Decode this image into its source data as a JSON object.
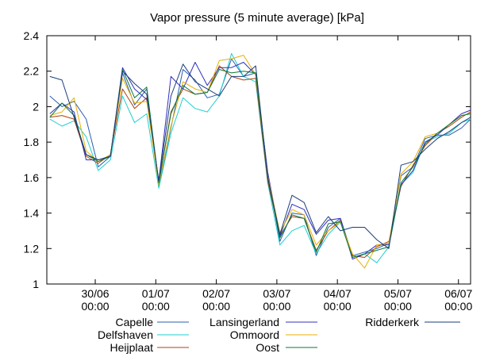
{
  "chart_data": {
    "type": "line",
    "title": "Vapor pressure (5 minute average) [kPa]",
    "xlabel": "",
    "ylabel": "",
    "ylim": [
      1,
      2.4
    ],
    "y_ticks": [
      "1",
      "1.2",
      "1.4",
      "1.6",
      "1.8",
      "2",
      "2.2",
      "2.4"
    ],
    "x_ticks": [
      {
        "day": "30/06",
        "time": "00:00"
      },
      {
        "day": "01/07",
        "time": "00:00"
      },
      {
        "day": "02/07",
        "time": "00:00"
      },
      {
        "day": "03/07",
        "time": "00:00"
      },
      {
        "day": "04/07",
        "time": "00:00"
      },
      {
        "day": "05/07",
        "time": "00:00"
      },
      {
        "day": "06/07",
        "time": "00:00"
      }
    ],
    "x_unit": "days since 29/06 00:00",
    "xlim": [
      0.2,
      7.2
    ],
    "x": [
      0.25,
      0.45,
      0.65,
      0.85,
      1.05,
      1.25,
      1.45,
      1.65,
      1.85,
      2.05,
      2.25,
      2.45,
      2.65,
      2.85,
      3.05,
      3.25,
      3.45,
      3.65,
      3.85,
      4.05,
      4.25,
      4.45,
      4.65,
      4.85,
      5.05,
      5.25,
      5.45,
      5.65,
      5.85,
      6.05,
      6.25,
      6.45,
      6.65,
      6.85,
      7.05,
      7.2
    ],
    "grid": false,
    "legend_position": "bottom",
    "series": [
      {
        "name": "Capelle",
        "color": "#2a5db0",
        "values": [
          2.06,
          2.0,
          2.03,
          1.93,
          1.66,
          1.72,
          2.19,
          2.01,
          2.1,
          1.55,
          1.88,
          2.21,
          2.15,
          2.05,
          2.07,
          2.27,
          2.17,
          2.19,
          1.62,
          1.24,
          1.4,
          1.39,
          1.16,
          1.32,
          1.37,
          1.16,
          1.18,
          1.2,
          1.23,
          1.61,
          1.66,
          1.82,
          1.84,
          1.84,
          1.88,
          1.93
        ]
      },
      {
        "name": "Delfshaven",
        "color": "#1fcfcf",
        "values": [
          1.93,
          1.89,
          1.92,
          1.83,
          1.64,
          1.7,
          2.06,
          1.91,
          1.96,
          1.54,
          1.85,
          2.05,
          1.99,
          1.97,
          2.06,
          2.3,
          2.17,
          2.14,
          1.57,
          1.22,
          1.3,
          1.33,
          1.17,
          1.28,
          1.35,
          1.15,
          1.17,
          1.12,
          1.21,
          1.56,
          1.63,
          1.8,
          1.83,
          1.85,
          1.91,
          1.93
        ]
      },
      {
        "name": "Heijplaat",
        "color": "#b04010",
        "values": [
          1.94,
          1.95,
          1.93,
          1.72,
          1.68,
          1.73,
          2.1,
          1.99,
          2.05,
          1.57,
          1.97,
          2.1,
          2.07,
          2.08,
          2.23,
          2.17,
          2.15,
          2.16,
          1.58,
          1.27,
          1.38,
          1.37,
          1.19,
          1.3,
          1.36,
          1.16,
          1.15,
          1.21,
          1.24,
          1.55,
          1.67,
          1.78,
          1.85,
          1.89,
          1.94,
          1.97
        ]
      },
      {
        "name": "Lansingerland",
        "color": "#3030c0",
        "values": [
          1.96,
          2.02,
          1.97,
          1.7,
          1.7,
          1.72,
          2.22,
          2.1,
          2.04,
          1.58,
          2.17,
          2.1,
          2.25,
          2.12,
          2.22,
          2.22,
          2.25,
          2.18,
          1.63,
          1.27,
          1.45,
          1.42,
          1.28,
          1.36,
          1.37,
          1.14,
          1.17,
          1.22,
          1.22,
          1.56,
          1.64,
          1.8,
          1.84,
          1.9,
          1.96,
          1.98
        ]
      },
      {
        "name": "Ommoord",
        "color": "#e8b000",
        "values": [
          1.95,
          1.97,
          2.05,
          1.75,
          1.69,
          1.73,
          2.16,
          2.02,
          2.03,
          1.56,
          1.89,
          2.14,
          2.1,
          2.08,
          2.26,
          2.27,
          2.29,
          2.18,
          1.61,
          1.29,
          1.42,
          1.39,
          1.22,
          1.3,
          1.35,
          1.17,
          1.09,
          1.22,
          1.23,
          1.62,
          1.69,
          1.83,
          1.85,
          1.9,
          1.95,
          1.96
        ]
      },
      {
        "name": "Oost",
        "color": "#0a7a3a",
        "values": [
          1.94,
          2.02,
          1.95,
          1.73,
          1.69,
          1.72,
          2.21,
          2.05,
          2.11,
          1.57,
          1.96,
          2.12,
          2.07,
          2.08,
          2.21,
          2.19,
          2.2,
          2.19,
          1.6,
          1.26,
          1.39,
          1.37,
          1.18,
          1.34,
          1.35,
          1.15,
          1.17,
          1.19,
          1.21,
          1.57,
          1.66,
          1.79,
          1.85,
          1.9,
          1.95,
          1.96
        ]
      },
      {
        "name": "Ridderkerk",
        "color": "#1a3e7a",
        "values": [
          2.17,
          2.15,
          1.94,
          1.73,
          1.7,
          1.72,
          2.2,
          2.13,
          2.07,
          1.58,
          2.06,
          2.24,
          2.14,
          2.1,
          2.06,
          2.17,
          2.17,
          2.23,
          1.6,
          1.28,
          1.5,
          1.46,
          1.29,
          1.38,
          1.3,
          1.32,
          1.32,
          1.25,
          1.2,
          1.67,
          1.69,
          1.76,
          1.82,
          1.86,
          1.91,
          1.94
        ]
      }
    ]
  }
}
